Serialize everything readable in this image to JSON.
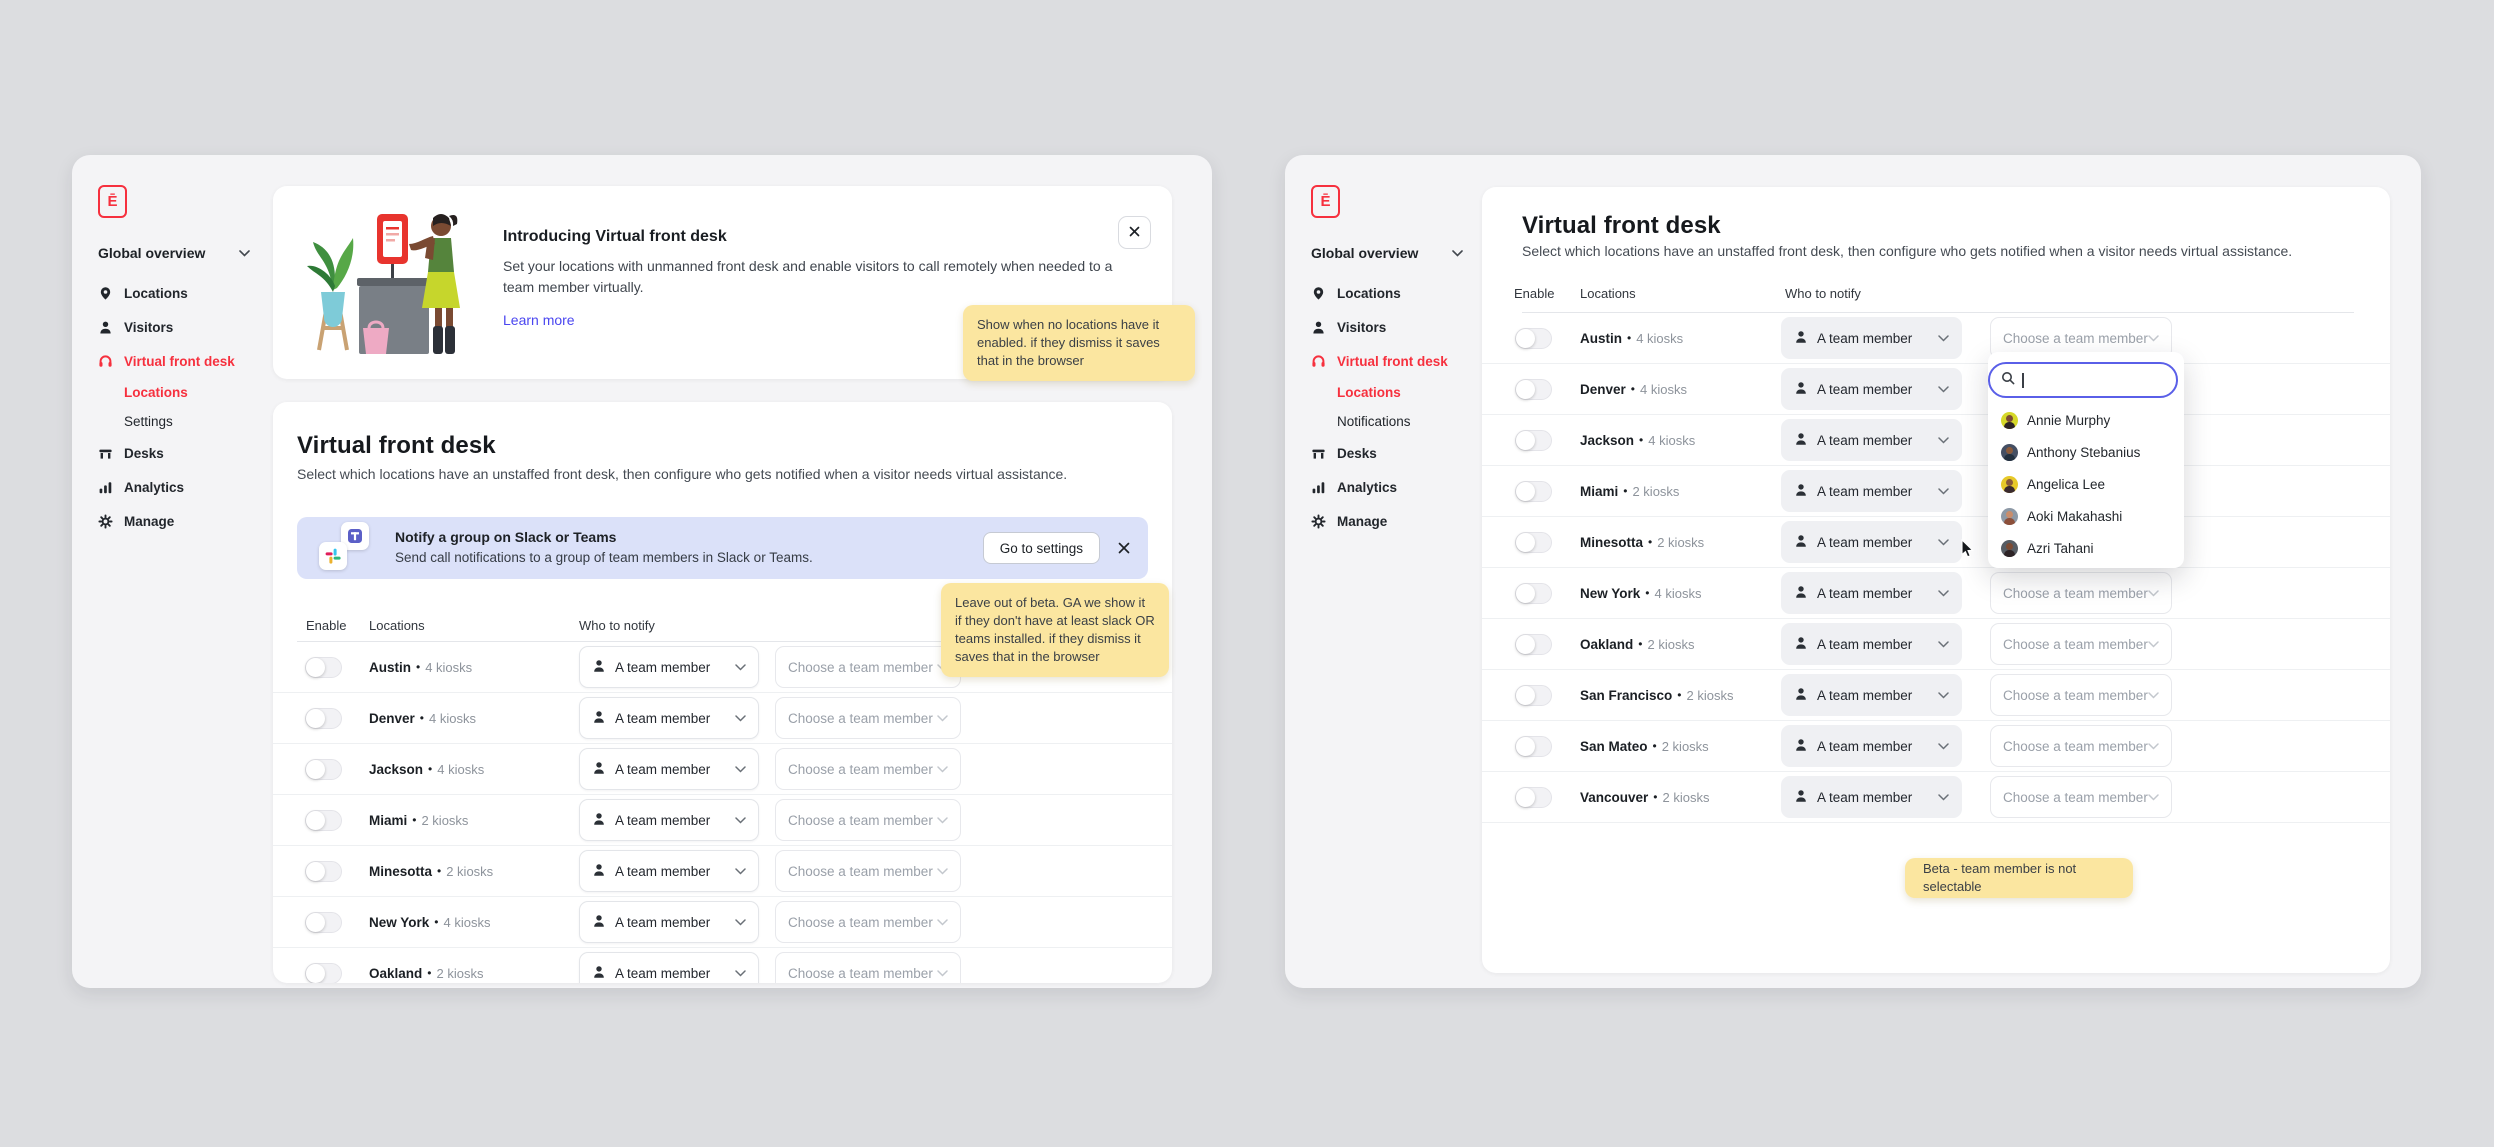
{
  "labels": {
    "team_member": "A team member",
    "choose_member": "Choose a team member",
    "logo_letter": "Ē"
  },
  "colors": {
    "accent_red": "#f6303e",
    "link_blue": "#4a46f0",
    "note_yellow": "#fbe6a0",
    "integration_banner_bg": "#dbe1f9",
    "focus_ring": "#5a5fe8"
  },
  "apps": [
    {
      "sidebar": {
        "overview": "Global overview",
        "items": [
          {
            "label": "Locations",
            "icon": "pin-icon"
          },
          {
            "label": "Visitors",
            "icon": "person-icon"
          },
          {
            "label": "Virtual front desk",
            "icon": "headset-icon",
            "active": true
          },
          {
            "label": "Locations",
            "sub": true,
            "active": true
          },
          {
            "label": "Settings",
            "sub": true
          },
          {
            "label": "Desks",
            "icon": "desk-icon"
          },
          {
            "label": "Analytics",
            "icon": "chart-icon"
          },
          {
            "label": "Manage",
            "icon": "gear-icon"
          }
        ]
      },
      "intro": {
        "title": "Introducing Virtual front desk",
        "body": "Set your locations with unmanned front desk and enable visitors to call remotely when needed to a team member virtually.",
        "link": "Learn more"
      },
      "section": {
        "title": "Virtual front desk",
        "subtitle": "Select which locations have an unstaffed front desk, then configure who gets notified when a visitor needs virtual assistance."
      },
      "integration": {
        "title": "Notify a group on Slack or Teams",
        "body": "Send call notifications to a group of team members in Slack or Teams.",
        "button": "Go to settings"
      },
      "headers": {
        "enable": "Enable",
        "locations": "Locations",
        "who": "Who to notify"
      },
      "table": {
        "rows": [
          {
            "name": "Austin",
            "kiosks": "4 kiosks"
          },
          {
            "name": "Denver",
            "kiosks": "4 kiosks"
          },
          {
            "name": "Jackson",
            "kiosks": "4 kiosks"
          },
          {
            "name": "Miami",
            "kiosks": "2 kiosks"
          },
          {
            "name": "Minesotta",
            "kiosks": "2 kiosks"
          },
          {
            "name": "New York",
            "kiosks": "4 kiosks"
          },
          {
            "name": "Oakland",
            "kiosks": "2 kiosks"
          }
        ]
      }
    },
    {
      "sidebar": {
        "overview": "Global overview",
        "items": [
          {
            "label": "Locations",
            "icon": "pin-icon"
          },
          {
            "label": "Visitors",
            "icon": "person-icon"
          },
          {
            "label": "Virtual front desk",
            "icon": "headset-icon",
            "active": true
          },
          {
            "label": "Locations",
            "sub": true,
            "active": true
          },
          {
            "label": "Notifications",
            "sub": true
          },
          {
            "label": "Desks",
            "icon": "desk-icon"
          },
          {
            "label": "Analytics",
            "icon": "chart-icon"
          },
          {
            "label": "Manage",
            "icon": "gear-icon"
          }
        ]
      },
      "section": {
        "title": "Virtual front desk",
        "subtitle": "Select which locations have an unstaffed front desk, then configure who gets notified when a visitor needs virtual assistance."
      },
      "headers": {
        "enable": "Enable",
        "locations": "Locations",
        "who": "Who to notify"
      },
      "table": {
        "open_row_index": 1,
        "rows": [
          {
            "name": "Austin",
            "kiosks": "4 kiosks"
          },
          {
            "name": "Denver",
            "kiosks": "4 kiosks"
          },
          {
            "name": "Jackson",
            "kiosks": "4 kiosks"
          },
          {
            "name": "Miami",
            "kiosks": "2 kiosks"
          },
          {
            "name": "Minesotta",
            "kiosks": "2 kiosks"
          },
          {
            "name": "New York",
            "kiosks": "4 kiosks"
          },
          {
            "name": "Oakland",
            "kiosks": "2 kiosks"
          },
          {
            "name": "San Francisco",
            "kiosks": "2 kiosks"
          },
          {
            "name": "San Mateo",
            "kiosks": "2 kiosks"
          },
          {
            "name": "Vancouver",
            "kiosks": "2 kiosks"
          }
        ]
      },
      "dropdown": {
        "search_value": "",
        "members": [
          {
            "name": "Annie Murphy",
            "bg": "#d6d829",
            "skin": "#7c4b33",
            "hair": "#2d2326"
          },
          {
            "name": "Anthony Stebanius",
            "bg": "#454f63",
            "skin": "#8a5a3b",
            "hair": "#23303f"
          },
          {
            "name": "Angelica Lee",
            "bg": "#e7c929",
            "skin": "#8a5a3b",
            "hair": "#3a2a2e"
          },
          {
            "name": "Aoki Makahashi",
            "bg": "#8d99a6",
            "skin": "#c98d6b",
            "hair": "#8c4f3a"
          },
          {
            "name": "Azri Tahani",
            "bg": "#565c63",
            "skin": "#7c4b33",
            "hair": "#2d2326"
          }
        ]
      }
    }
  ],
  "notes": [
    {
      "text": "Show when no locations have it enabled. if they dismiss it saves that in the browser"
    },
    {
      "text": "Leave out of beta. GA we show it if they don't have at least slack OR teams installed. if they dismiss it saves that in the browser"
    },
    {
      "text": "Beta - team member is not selectable"
    }
  ]
}
